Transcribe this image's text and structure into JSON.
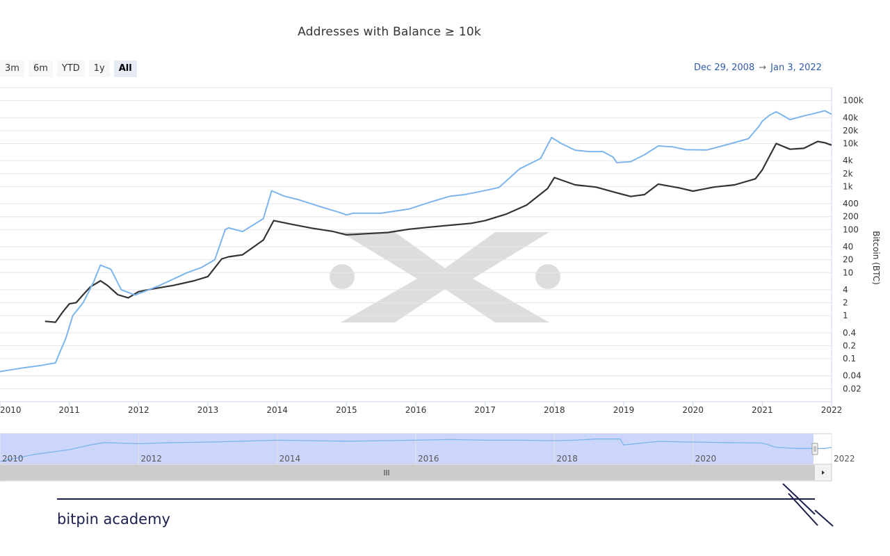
{
  "range_selector": {
    "buttons": [
      {
        "label": "3m",
        "selected": false
      },
      {
        "label": "6m",
        "selected": false
      },
      {
        "label": "YTD",
        "selected": false
      },
      {
        "label": "1y",
        "selected": false
      },
      {
        "label": "All",
        "selected": true
      }
    ]
  },
  "date_range": {
    "from": "Dec 29, 2008",
    "arrow": "→",
    "to": "Jan 3, 2022"
  },
  "colors": {
    "addresses_line": "#333333",
    "price_line": "#7cb5ec",
    "navigator_fill": "#ccd6fa",
    "navigator_line": "#7cb5ec",
    "brand": "#1b1f4b",
    "watermark": "#dddddd"
  },
  "watermark": {
    "icon": "xx-logo-icon"
  },
  "brand": {
    "name": "bitpin academy"
  },
  "navigator": {
    "labels": [
      "2010",
      "2012",
      "2014",
      "2016",
      "2018",
      "2020",
      "2022"
    ],
    "scrollbar_icon": "scroll-grip-icon",
    "arrow_icon": "arrow-right-icon"
  },
  "chart_data": {
    "type": "line",
    "title": "Addresses with Balance ≥ 10k",
    "x_ticks": [
      "2010",
      "2011",
      "2012",
      "2013",
      "2014",
      "2015",
      "2016",
      "2017",
      "2018",
      "2019",
      "2020",
      "2021",
      "2022"
    ],
    "xlim": [
      2010.0,
      2022.0
    ],
    "y_axis_title": "Bitcoin (BTC)",
    "y_ticks": [
      "100k",
      "40k",
      "20k",
      "10k",
      "4k",
      "2k",
      "1k",
      "400",
      "200",
      "100",
      "40",
      "20",
      "10",
      "4",
      "2",
      "1",
      "0.4",
      "0.2",
      "0.1",
      "0.04",
      "0.02"
    ],
    "y_scale": "log",
    "ylim": [
      0.01,
      200000
    ],
    "grid": true,
    "series": [
      {
        "axis": "left",
        "x": [
          2010.65,
          2010.8,
          2010.9,
          2011.0,
          2011.1,
          2011.2,
          2011.3,
          2011.45,
          2011.55,
          2011.7,
          2011.85,
          2012.0,
          2012.2,
          2012.5,
          2012.8,
          2013.0,
          2013.2,
          2013.3,
          2013.5,
          2013.8,
          2013.95,
          2014.2,
          2014.5,
          2014.8,
          2015.0,
          2015.3,
          2015.6,
          2015.9,
          2016.2,
          2016.5,
          2016.8,
          2017.0,
          2017.3,
          2017.6,
          2017.9,
          2018.0,
          2018.3,
          2018.6,
          2018.9,
          2019.1,
          2019.3,
          2019.5,
          2019.8,
          2020.0,
          2020.3,
          2020.6,
          2020.9,
          2021.0,
          2021.2,
          2021.4,
          2021.6,
          2021.8,
          2021.9,
          2022.0
        ],
        "y": [
          210,
          205,
          260,
          320,
          330,
          400,
          480,
          560,
          500,
          400,
          370,
          430,
          460,
          500,
          560,
          620,
          950,
          1000,
          1050,
          1500,
          2400,
          2200,
          2000,
          1850,
          1700,
          1750,
          1800,
          1950,
          2050,
          2150,
          2250,
          2400,
          2800,
          3500,
          5200,
          6800,
          5700,
          5400,
          4700,
          4300,
          4500,
          5800,
          5300,
          4900,
          5400,
          5700,
          6600,
          8200,
          15500,
          13500,
          13800,
          16300,
          15800,
          14900
        ]
      },
      {
        "axis": "right",
        "x": [
          2010.0,
          2010.3,
          2010.6,
          2010.8,
          2010.95,
          2011.05,
          2011.2,
          2011.35,
          2011.45,
          2011.6,
          2011.75,
          2011.95,
          2012.3,
          2012.7,
          2012.9,
          2013.1,
          2013.25,
          2013.3,
          2013.5,
          2013.8,
          2013.92,
          2014.1,
          2014.3,
          2014.6,
          2014.9,
          2015.0,
          2015.1,
          2015.5,
          2015.9,
          2016.2,
          2016.5,
          2016.7,
          2016.9,
          2017.2,
          2017.5,
          2017.8,
          2017.96,
          2018.1,
          2018.3,
          2018.5,
          2018.7,
          2018.85,
          2018.9,
          2019.1,
          2019.3,
          2019.5,
          2019.7,
          2019.9,
          2020.2,
          2020.5,
          2020.8,
          2020.95,
          2021.0,
          2021.1,
          2021.2,
          2021.4,
          2021.6,
          2021.75,
          2021.9,
          2022.0
        ],
        "y": [
          0.05,
          0.06,
          0.07,
          0.08,
          0.3,
          1,
          2,
          6,
          15,
          12,
          4,
          3,
          5,
          10,
          13,
          20,
          100,
          110,
          90,
          180,
          800,
          600,
          500,
          350,
          250,
          220,
          240,
          240,
          300,
          430,
          600,
          650,
          750,
          950,
          2600,
          4500,
          13800,
          10000,
          7000,
          6500,
          6500,
          4800,
          3600,
          3800,
          5500,
          8800,
          8400,
          7200,
          7100,
          9500,
          13000,
          25000,
          33000,
          45000,
          55000,
          36000,
          44000,
          50000,
          58000,
          48000
        ]
      },
      {
        "axis": "nav",
        "x": [
          2010.0,
          2010.5,
          2011.0,
          2011.3,
          2011.5,
          2012.0,
          2012.5,
          2013.0,
          2013.5,
          2014.0,
          2014.5,
          2015.0,
          2015.5,
          2016.0,
          2016.5,
          2017.0,
          2017.5,
          2018.0,
          2018.3,
          2018.6,
          2018.7,
          2018.95,
          2019.0,
          2019.5,
          2020.0,
          2020.5,
          2021.0,
          2021.2,
          2021.5,
          2021.9,
          2022.0
        ],
        "y": [
          0.0,
          0.3,
          0.5,
          0.7,
          0.8,
          0.75,
          0.8,
          0.82,
          0.86,
          0.9,
          0.88,
          0.86,
          0.88,
          0.9,
          0.93,
          0.9,
          0.9,
          0.88,
          0.9,
          0.95,
          0.95,
          0.95,
          0.7,
          0.85,
          0.82,
          0.8,
          0.78,
          0.6,
          0.55,
          0.55,
          0.6
        ]
      }
    ]
  }
}
